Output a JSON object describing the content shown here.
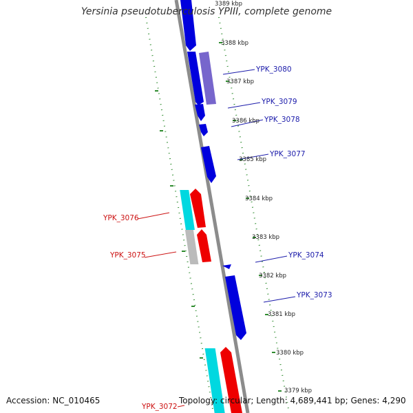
{
  "title": "Yersinia pseudotuberculosis YPIII, complete genome",
  "accession": "Accession: NC_010465",
  "topology": "Topology: circular; Length: 4,689,441 bp; Genes: 4,290",
  "colors": {
    "backbone": "#8c8c8c",
    "dotted": "#2e8b2e",
    "blue_gene": "#0000dd",
    "purple_gene": "#7766cc",
    "red_gene": "#ee0000",
    "cyan_gene": "#00d8e0",
    "gray_gene": "#bbbbbb",
    "blue_label": "#1a1aaa",
    "red_label": "#cc1111"
  },
  "ticks": [
    "3389 kbp",
    "3388 kbp",
    "3387 kbp",
    "3386 kbp",
    "3385 kbp",
    "3384 kbp",
    "3383 kbp",
    "3382 kbp",
    "3381 kbp",
    "3380 kbp",
    "3379 kbp"
  ],
  "gene_labels": [
    "YPK_3080",
    "YPK_3079",
    "YPK_3078",
    "YPK_3077",
    "YPK_3076",
    "YPK_3075",
    "YPK_3074",
    "YPK_3073",
    "YPK_3072"
  ]
}
